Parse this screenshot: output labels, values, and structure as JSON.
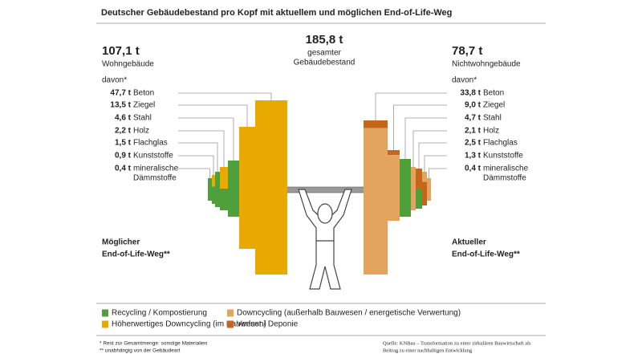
{
  "header": {
    "title": "Deutscher Gebäudebestand pro Kopf mit aktuellem und möglichen End-of-Life-Weg"
  },
  "center": {
    "total": "185,8 t",
    "lines": [
      "gesamter",
      "Gebäudebestand"
    ]
  },
  "left": {
    "total": "107,1 t",
    "name": "Wohngebäude",
    "davon": "davon*",
    "items": [
      {
        "amount": "47,7 t",
        "material": [
          "Beton"
        ]
      },
      {
        "amount": "13,5 t",
        "material": [
          "Ziegel"
        ]
      },
      {
        "amount": "4,6 t",
        "material": [
          "Stahl"
        ]
      },
      {
        "amount": "2,2 t",
        "material": [
          "Holz"
        ]
      },
      {
        "amount": "1,5 t",
        "material": [
          "Flachglas"
        ]
      },
      {
        "amount": "0,9 t",
        "material": [
          "Kunststoffe"
        ]
      },
      {
        "amount": "0,4 t",
        "material": [
          "mineralische",
          "Dämmstoffe"
        ]
      }
    ],
    "path_label": [
      "Möglicher",
      "End-of-Life-Weg**"
    ]
  },
  "right": {
    "total": "78,7 t",
    "name": "Nichtwohngebäude",
    "davon": "davon*",
    "items": [
      {
        "amount": "33,8 t",
        "material": [
          "Beton"
        ]
      },
      {
        "amount": "9,0 t",
        "material": [
          "Ziegel"
        ]
      },
      {
        "amount": "4,7 t",
        "material": [
          "Stahl"
        ]
      },
      {
        "amount": "2,1 t",
        "material": [
          "Holz"
        ]
      },
      {
        "amount": "2,5 t",
        "material": [
          "Flachglas"
        ]
      },
      {
        "amount": "1,3 t",
        "material": [
          "Kunststoffe"
        ]
      },
      {
        "amount": "0,4 t",
        "material": [
          "mineralische",
          "Dämmstoffe"
        ]
      }
    ],
    "path_label": [
      "Aktueller",
      "End-of-Life-Weg**"
    ]
  },
  "legend": [
    {
      "label": "Recycling / Kompostierung",
      "color": "#4f9f3a"
    },
    {
      "label": "Höherwertiges Downcycling (im Bauwesen)",
      "color": "#e8aa00"
    },
    {
      "label": "Downcycling (außerhalb Bauwesen / energetische Verwertung)",
      "color": "#e3a55e"
    },
    {
      "label": "Verlust / Deponie",
      "color": "#c4661c"
    }
  ],
  "footnotes": [
    "*  Rest zur Gesamtmenge: sonstige Materialien",
    "** unabhängig von der Gebäudeart"
  ],
  "source": [
    "Quelle: KNBau – Transformation zu einer zirkulären Bauwirtschaft als",
    "Beitrag zu einer nachhaltigen Entwicklung"
  ]
}
